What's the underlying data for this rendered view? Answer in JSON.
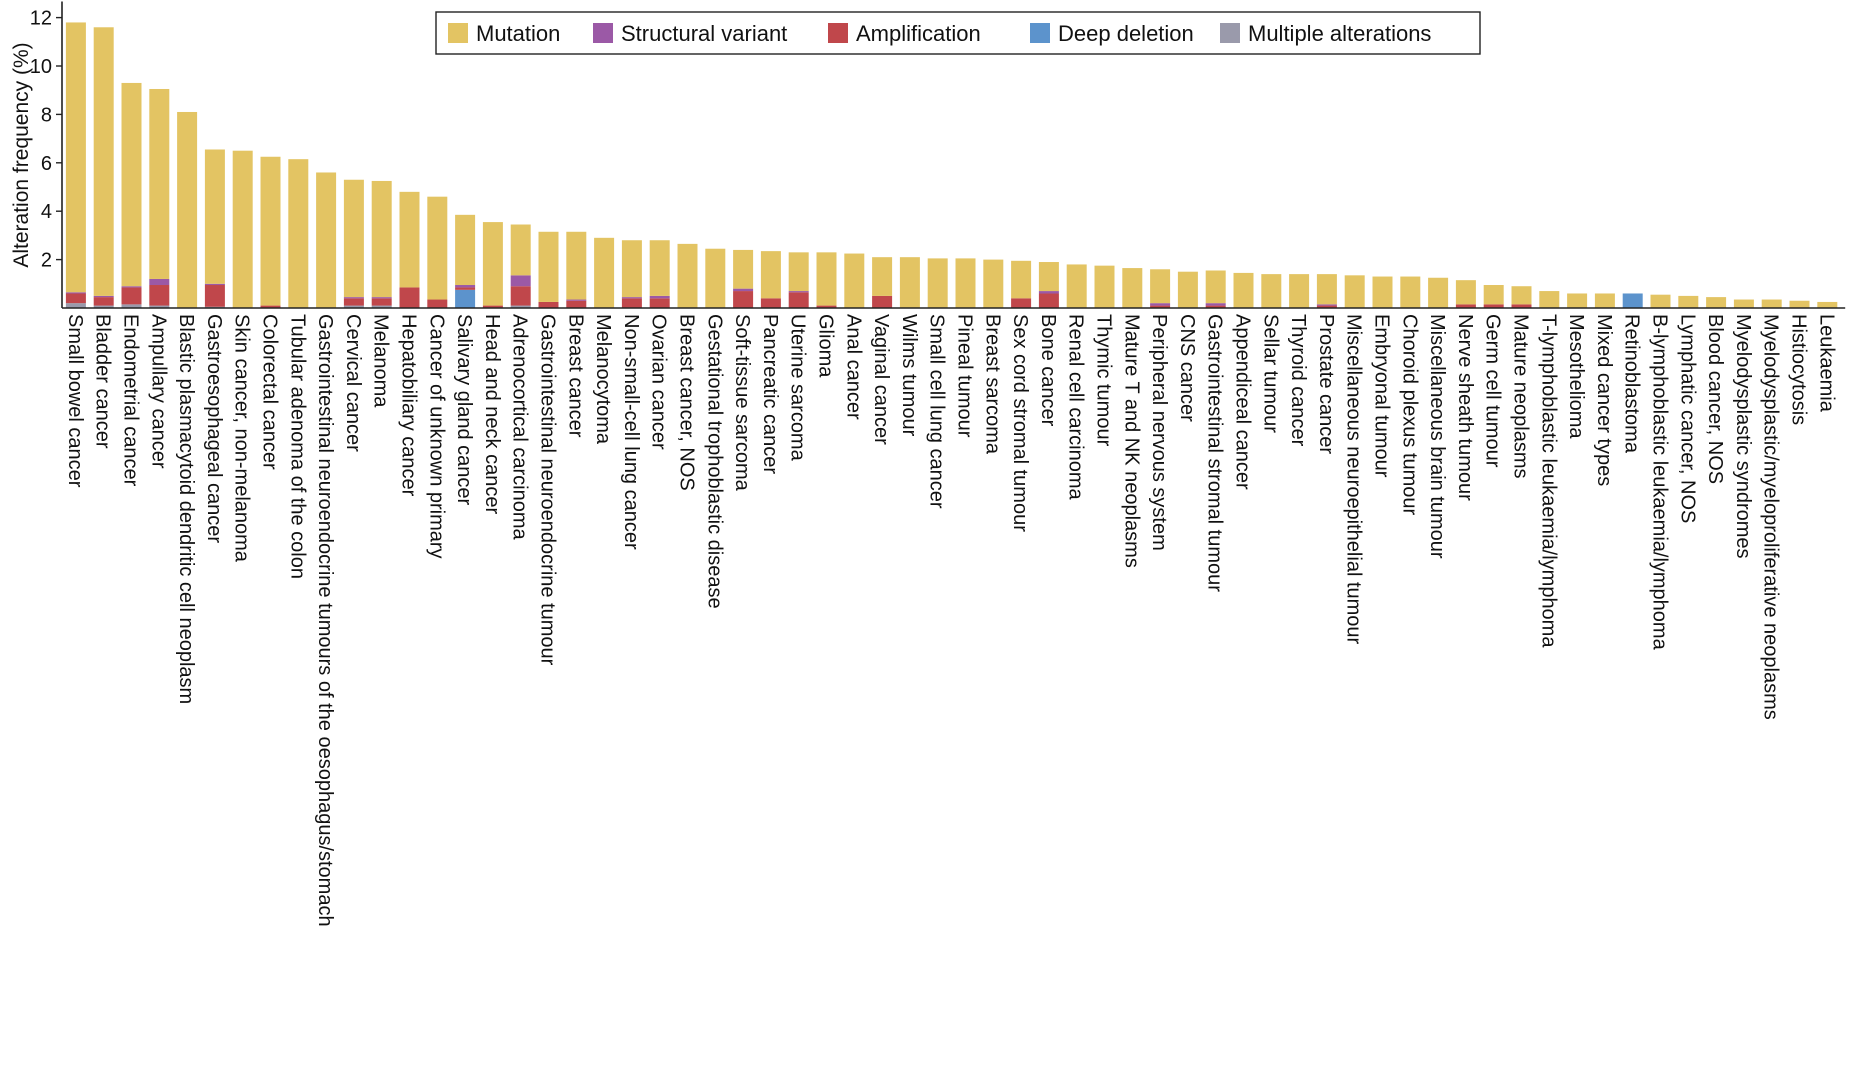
{
  "chart_data": {
    "type": "bar",
    "stacked": true,
    "ylabel": "Alteration frequency (%)",
    "xlabel": "",
    "ylim": [
      0,
      12.5
    ],
    "yticks": [
      2,
      4,
      6,
      8,
      10,
      12
    ],
    "legend_position": "top-center",
    "grid": false,
    "categories": [
      "Small bowel cancer",
      "Bladder cancer",
      "Endometrial cancer",
      "Ampullary cancer",
      "Blastic plasmacytoid dendritic cell neoplasm",
      "Gastroesophageal cancer",
      "Skin cancer, non-melanoma",
      "Colorectal cancer",
      "Tubular adenoma of the colon",
      "Gastrointestinal neuroendocrine tumours of the oesophagus/stomach",
      "Cervical cancer",
      "Melanoma",
      "Hepatobiliary cancer",
      "Cancer of unknown primary",
      "Salivary gland cancer",
      "Head and neck cancer",
      "Adrenocortical carcinoma",
      "Gastrointestinal neuroendocrine tumour",
      "Breast cancer",
      "Melanocytoma",
      "Non-small-cell lung cancer",
      "Ovarian cancer",
      "Breast cancer, NOS",
      "Gestational trophoblastic disease",
      "Soft-tissue sarcoma",
      "Pancreatic cancer",
      "Uterine sarcoma",
      "Glioma",
      "Anal cancer",
      "Vaginal cancer",
      "Wilms tumour",
      "Small cell lung cancer",
      "Pineal tumour",
      "Breast sarcoma",
      "Sex cord stromal tumour",
      "Bone cancer",
      "Renal cell carcinoma",
      "Thymic tumour",
      "Mature T and NK neoplasms",
      "Peripheral nervous system",
      "CNS cancer",
      "Gastrointestinal stromal tumour",
      "Appendiceal cancer",
      "Sellar tumour",
      "Thyroid cancer",
      "Prostate cancer",
      "Miscellaneous neuroepithelial tumour",
      "Embryonal tumour",
      "Choroid plexus tumour",
      "Miscellaneous brain tumour",
      "Nerve sheath tumour",
      "Germ cell tumour",
      "Mature neoplasms",
      "T-lymphoblastic leukaemia/lymphoma",
      "Mesothelioma",
      "Mixed cancer types",
      "Retinoblastoma",
      "B-lymphoblastic leukaemia/lymphoma",
      "Lymphatic cancer, NOS",
      "Blood cancer, NOS",
      "Myelodysplastic syndromes",
      "Myelodysplastic/myeloproliferative neoplasms",
      "Histiocytosis",
      "Leukaemia"
    ],
    "series": [
      {
        "name": "Multiple alterations",
        "color": "#9a9aab",
        "values": [
          0.2,
          0.1,
          0.15,
          0.1,
          0,
          0.05,
          0,
          0,
          0,
          0,
          0.1,
          0.1,
          0,
          0,
          0,
          0,
          0.1,
          0,
          0,
          0,
          0,
          0,
          0,
          0,
          0,
          0,
          0,
          0,
          0,
          0,
          0,
          0,
          0,
          0,
          0,
          0,
          0,
          0,
          0,
          0,
          0,
          0,
          0,
          0,
          0,
          0,
          0,
          0,
          0,
          0,
          0,
          0,
          0,
          0,
          0,
          0,
          0,
          0,
          0,
          0,
          0,
          0,
          0,
          0
        ]
      },
      {
        "name": "Deep deletion",
        "color": "#5c93cc",
        "values": [
          0,
          0,
          0,
          0,
          0,
          0,
          0,
          0,
          0,
          0,
          0,
          0,
          0,
          0,
          0.75,
          0,
          0,
          0,
          0,
          0,
          0,
          0,
          0,
          0,
          0,
          0,
          0,
          0,
          0,
          0,
          0,
          0,
          0,
          0,
          0,
          0,
          0,
          0,
          0,
          0,
          0,
          0,
          0,
          0,
          0,
          0,
          0,
          0,
          0,
          0,
          0,
          0,
          0,
          0,
          0,
          0,
          0.6,
          0,
          0,
          0,
          0,
          0,
          0,
          0
        ]
      },
      {
        "name": "Amplification",
        "color": "#c0474b",
        "values": [
          0.4,
          0.35,
          0.7,
          0.85,
          0,
          0.9,
          0,
          0.1,
          0,
          0,
          0.3,
          0.3,
          0.85,
          0.35,
          0.1,
          0.1,
          0.8,
          0.25,
          0.3,
          0,
          0.4,
          0.4,
          0,
          0,
          0.7,
          0.4,
          0.65,
          0.1,
          0,
          0.5,
          0,
          0,
          0,
          0,
          0.4,
          0.6,
          0,
          0,
          0,
          0.1,
          0,
          0.1,
          0,
          0,
          0,
          0.1,
          0,
          0,
          0,
          0,
          0.15,
          0.15,
          0.15,
          0,
          0,
          0,
          0,
          0,
          0,
          0,
          0,
          0,
          0,
          0
        ]
      },
      {
        "name": "Structural variant",
        "color": "#9b59a6",
        "values": [
          0.05,
          0.05,
          0.05,
          0.25,
          0,
          0.05,
          0,
          0,
          0,
          0,
          0.05,
          0.05,
          0,
          0,
          0.1,
          0,
          0.45,
          0,
          0.05,
          0,
          0.05,
          0.1,
          0,
          0,
          0.1,
          0,
          0.05,
          0,
          0,
          0,
          0,
          0,
          0,
          0,
          0,
          0.1,
          0,
          0,
          0,
          0.1,
          0,
          0.1,
          0,
          0,
          0,
          0.05,
          0,
          0,
          0,
          0,
          0,
          0,
          0,
          0,
          0,
          0,
          0,
          0,
          0,
          0,
          0,
          0,
          0,
          0
        ]
      },
      {
        "name": "Mutation",
        "color": "#e3c463",
        "values": [
          11.15,
          11.1,
          8.4,
          7.85,
          8.1,
          5.55,
          6.5,
          6.15,
          6.15,
          5.6,
          4.85,
          4.8,
          3.95,
          4.25,
          2.9,
          3.45,
          2.1,
          2.9,
          2.8,
          2.9,
          2.35,
          2.3,
          2.65,
          2.45,
          1.6,
          1.95,
          1.6,
          2.2,
          2.25,
          1.6,
          2.1,
          2.05,
          2.05,
          2.0,
          1.55,
          1.2,
          1.8,
          1.75,
          1.65,
          1.4,
          1.5,
          1.35,
          1.45,
          1.4,
          1.4,
          1.25,
          1.35,
          1.3,
          1.3,
          1.25,
          1.0,
          0.8,
          0.75,
          0.7,
          0.6,
          0.6,
          0,
          0.55,
          0.5,
          0.45,
          0.35,
          0.35,
          0.3,
          0.25
        ]
      }
    ],
    "legend_order": [
      "Mutation",
      "Structural variant",
      "Amplification",
      "Deep deletion",
      "Multiple alterations"
    ]
  }
}
